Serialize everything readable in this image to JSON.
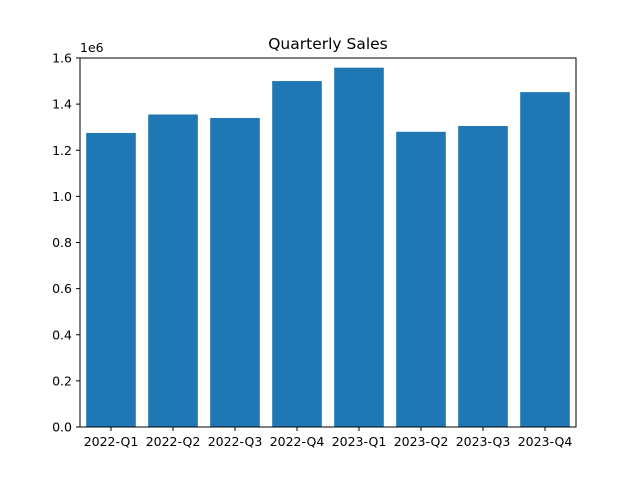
{
  "chart_data": {
    "type": "bar",
    "title": "Quarterly Sales",
    "xlabel": "",
    "ylabel": "",
    "y_offset_label": "1e6",
    "categories": [
      "2022-Q1",
      "2022-Q2",
      "2022-Q3",
      "2022-Q4",
      "2023-Q1",
      "2023-Q2",
      "2023-Q3",
      "2023-Q4"
    ],
    "values": [
      1275000,
      1355000,
      1340000,
      1500000,
      1558000,
      1280000,
      1305000,
      1452000
    ],
    "ylim": [
      0,
      1600000
    ],
    "yticks": [
      0,
      200000,
      400000,
      600000,
      800000,
      1000000,
      1200000,
      1400000,
      1600000
    ],
    "ytick_labels": [
      "0.0",
      "0.2",
      "0.4",
      "0.6",
      "0.8",
      "1.0",
      "1.2",
      "1.4",
      "1.6"
    ],
    "grid": false,
    "bar_color": "#1f77b4"
  }
}
